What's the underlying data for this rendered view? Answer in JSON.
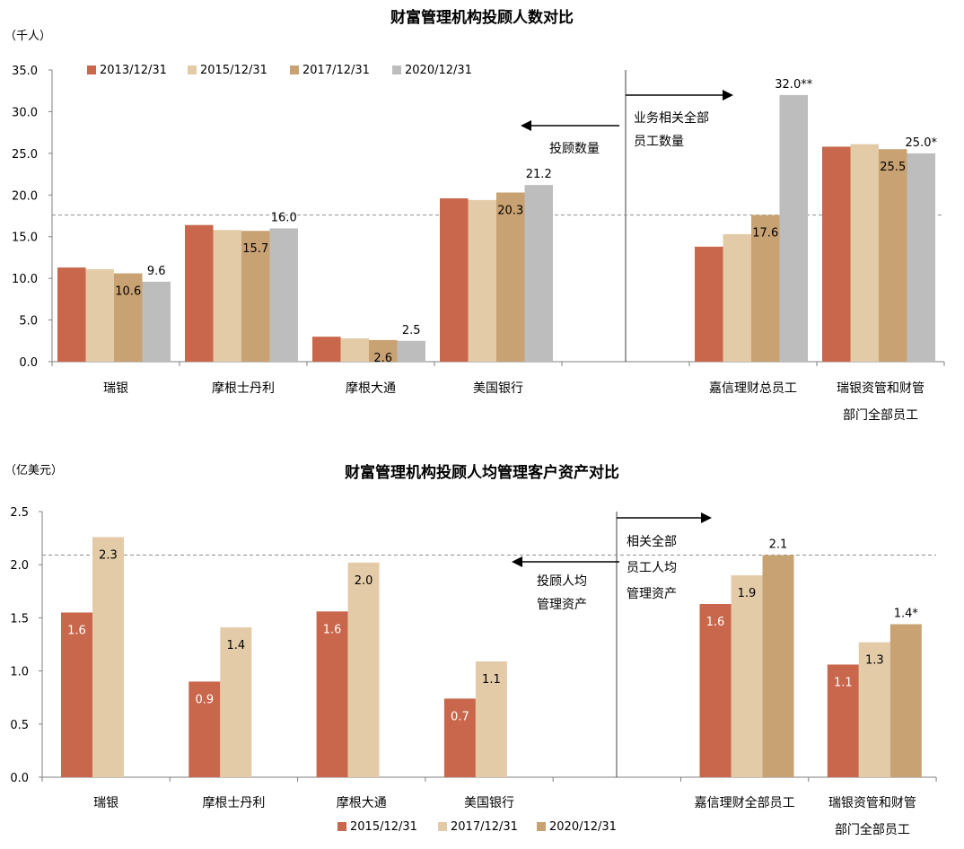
{
  "colors": {
    "s2013": "#C8674B",
    "s2015": "#E3CBA8",
    "s2017": "#C9A273",
    "s2020": "#BDBDBD",
    "axis": "#7f7f7f",
    "dashed": "#8f8f8f"
  },
  "chart_data": [
    {
      "type": "bar",
      "title": "财富管理机构投顾人数对比",
      "ylabel": "（千人）",
      "ylim": [
        0,
        35
      ],
      "yticks": [
        "0.0",
        "5.0",
        "10.0",
        "15.0",
        "20.0",
        "25.0",
        "30.0",
        "35.0"
      ],
      "categories": [
        "瑞银",
        "摩根士丹利",
        "摩根大通",
        "美国银行",
        "",
        "嘉信理财总员工",
        "瑞银资管和财管部门全部员工"
      ],
      "category_lines": [
        [
          "瑞银"
        ],
        [
          "摩根士丹利"
        ],
        [
          "摩根大通"
        ],
        [
          "美国银行"
        ],
        [
          ""
        ],
        [
          "嘉信理财总员工"
        ],
        [
          "瑞银资管和财管",
          "部门全部员工"
        ]
      ],
      "series": [
        {
          "name": "2013/12/31",
          "values": [
            11.3,
            16.4,
            3.0,
            19.6,
            null,
            13.8,
            25.8
          ]
        },
        {
          "name": "2015/12/31",
          "values": [
            11.1,
            15.8,
            2.8,
            19.4,
            null,
            15.3,
            26.1
          ]
        },
        {
          "name": "2017/12/31",
          "values": [
            10.6,
            15.7,
            2.6,
            20.3,
            null,
            17.6,
            25.5
          ]
        },
        {
          "name": "2020/12/31",
          "values": [
            9.6,
            16.0,
            2.5,
            21.2,
            null,
            32.0,
            25.0
          ]
        }
      ],
      "data_labels": [
        {
          "series": 2,
          "cat": 0,
          "text": "10.6",
          "pos": "inside"
        },
        {
          "series": 3,
          "cat": 0,
          "text": "9.6",
          "pos": "above"
        },
        {
          "series": 2,
          "cat": 1,
          "text": "15.7",
          "pos": "inside"
        },
        {
          "series": 3,
          "cat": 1,
          "text": "16.0",
          "pos": "above"
        },
        {
          "series": 2,
          "cat": 2,
          "text": "2.6",
          "pos": "inside"
        },
        {
          "series": 3,
          "cat": 2,
          "text": "2.5",
          "pos": "above"
        },
        {
          "series": 2,
          "cat": 3,
          "text": "20.3",
          "pos": "inside"
        },
        {
          "series": 3,
          "cat": 3,
          "text": "21.2",
          "pos": "above"
        },
        {
          "series": 2,
          "cat": 5,
          "text": "17.6",
          "pos": "inside"
        },
        {
          "series": 3,
          "cat": 5,
          "text": "32.0**",
          "pos": "above"
        },
        {
          "series": 2,
          "cat": 6,
          "text": "25.5",
          "pos": "inside"
        },
        {
          "series": 3,
          "cat": 6,
          "text": "25.0*",
          "pos": "above"
        }
      ],
      "reference_line": 17.6,
      "legend": "top-left",
      "annotations": {
        "left": [
          "投顾数量"
        ],
        "right": [
          "业务相关全部",
          "员工数量"
        ]
      },
      "grid": false
    },
    {
      "type": "bar",
      "title": "财富管理机构投顾人均管理客户资产对比",
      "ylabel": "（亿美元）",
      "ylim": [
        0,
        2.5
      ],
      "yticks": [
        "0.0",
        "0.5",
        "1.0",
        "1.5",
        "2.0",
        "2.5"
      ],
      "categories": [
        "瑞银",
        "摩根士丹利",
        "摩根大通",
        "美国银行",
        "",
        "嘉信理财全部员工",
        "瑞银资管和财管部门全部员工"
      ],
      "category_lines": [
        [
          "瑞银"
        ],
        [
          "摩根士丹利"
        ],
        [
          "摩根大通"
        ],
        [
          "美国银行"
        ],
        [
          ""
        ],
        [
          "嘉信理财全部员工"
        ],
        [
          "瑞银资管和财管",
          "部门全部员工"
        ]
      ],
      "series": [
        {
          "name": "2015/12/31",
          "values": [
            1.55,
            0.9,
            1.56,
            0.74,
            null,
            1.63,
            1.06
          ]
        },
        {
          "name": "2017/12/31",
          "values": [
            2.26,
            1.41,
            2.02,
            1.09,
            null,
            1.9,
            1.27
          ]
        },
        {
          "name": "2020/12/31",
          "values": [
            null,
            null,
            null,
            null,
            null,
            2.09,
            1.44
          ]
        }
      ],
      "data_labels": [
        {
          "series": 0,
          "cat": 0,
          "text": "1.6",
          "pos": "inside"
        },
        {
          "series": 1,
          "cat": 0,
          "text": "2.3",
          "pos": "inside"
        },
        {
          "series": 0,
          "cat": 1,
          "text": "0.9",
          "pos": "inside"
        },
        {
          "series": 1,
          "cat": 1,
          "text": "1.4",
          "pos": "inside"
        },
        {
          "series": 0,
          "cat": 2,
          "text": "1.6",
          "pos": "inside"
        },
        {
          "series": 1,
          "cat": 2,
          "text": "2.0",
          "pos": "inside"
        },
        {
          "series": 0,
          "cat": 3,
          "text": "0.7",
          "pos": "inside"
        },
        {
          "series": 1,
          "cat": 3,
          "text": "1.1",
          "pos": "inside"
        },
        {
          "series": 0,
          "cat": 5,
          "text": "1.6",
          "pos": "inside"
        },
        {
          "series": 1,
          "cat": 5,
          "text": "1.9",
          "pos": "inside"
        },
        {
          "series": 2,
          "cat": 5,
          "text": "2.1",
          "pos": "above"
        },
        {
          "series": 0,
          "cat": 6,
          "text": "1.1",
          "pos": "inside"
        },
        {
          "series": 1,
          "cat": 6,
          "text": "1.3",
          "pos": "inside"
        },
        {
          "series": 2,
          "cat": 6,
          "text": "1.4*",
          "pos": "above"
        }
      ],
      "reference_line": 2.09,
      "legend": "bottom",
      "annotations": {
        "left": [
          "投顾人均",
          "管理资产"
        ],
        "right": [
          "相关全部",
          "员工人均",
          "管理资产"
        ]
      },
      "grid": false
    }
  ]
}
